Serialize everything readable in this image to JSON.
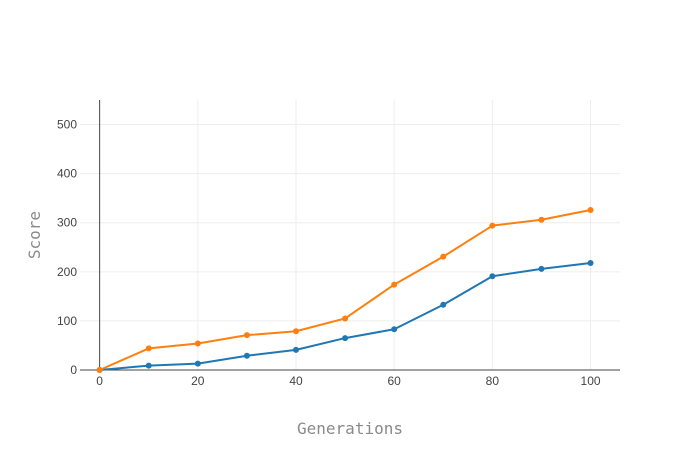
{
  "chart_data": {
    "type": "line",
    "title": "",
    "xlabel": "Generations",
    "ylabel": "Score",
    "xlim": [
      -4,
      106
    ],
    "ylim": [
      0,
      550
    ],
    "x_ticks": [
      0,
      20,
      40,
      60,
      80,
      100
    ],
    "y_ticks": [
      0,
      100,
      200,
      300,
      400,
      500
    ],
    "grid": true,
    "legend": "none",
    "x": [
      0,
      10,
      20,
      30,
      40,
      50,
      60,
      70,
      80,
      90,
      100
    ],
    "series": [
      {
        "color": "#1f77b4",
        "values": [
          0,
          9,
          13,
          29,
          41,
          65,
          83,
          133,
          191,
          206,
          218
        ]
      },
      {
        "color": "#ff7f0e",
        "values": [
          0,
          44,
          54,
          71,
          79,
          105,
          174,
          231,
          294,
          306,
          326
        ]
      }
    ]
  }
}
